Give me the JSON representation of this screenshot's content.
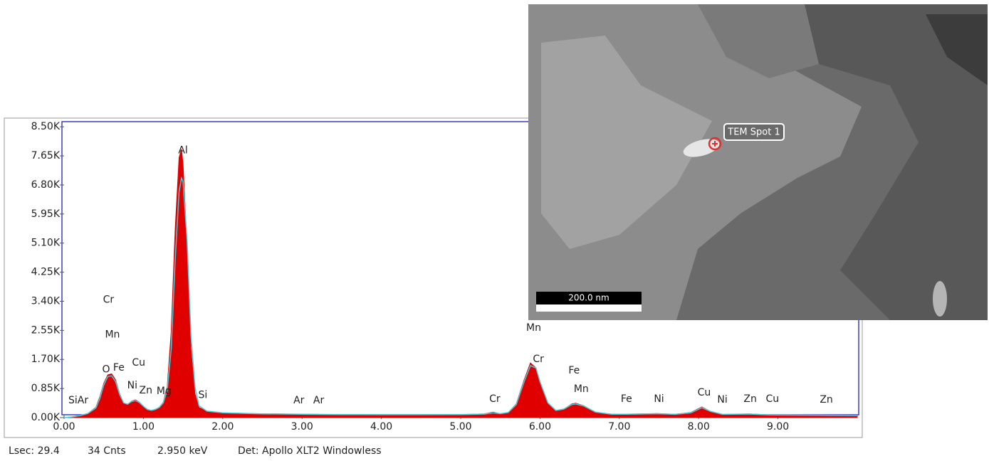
{
  "chart_data": {
    "type": "area",
    "x": [
      0,
      0.1,
      0.2,
      0.3,
      0.4,
      0.45,
      0.5,
      0.55,
      0.6,
      0.65,
      0.7,
      0.75,
      0.8,
      0.85,
      0.9,
      0.95,
      1.0,
      1.05,
      1.1,
      1.15,
      1.2,
      1.25,
      1.3,
      1.35,
      1.4,
      1.45,
      1.48,
      1.5,
      1.55,
      1.6,
      1.65,
      1.7,
      1.8,
      2.0,
      2.5,
      3.0,
      3.5,
      4.0,
      4.5,
      5.0,
      5.3,
      5.41,
      5.5,
      5.6,
      5.7,
      5.8,
      5.88,
      5.95,
      6.0,
      6.1,
      6.2,
      6.3,
      6.4,
      6.45,
      6.55,
      6.7,
      6.9,
      7.1,
      7.48,
      7.7,
      7.9,
      8.04,
      8.15,
      8.3,
      8.64,
      8.9,
      9.5,
      10.0
    ],
    "series": [
      {
        "color": "#e00000",
        "fill": true,
        "values": [
          0,
          20,
          60,
          120,
          300,
          600,
          1000,
          1250,
          1280,
          1100,
          700,
          420,
          380,
          480,
          520,
          450,
          330,
          230,
          200,
          230,
          300,
          450,
          900,
          2500,
          5500,
          7600,
          7850,
          7400,
          5000,
          2000,
          700,
          300,
          180,
          140,
          110,
          100,
          90,
          85,
          85,
          90,
          110,
          160,
          110,
          150,
          400,
          1100,
          1600,
          1450,
          1000,
          400,
          200,
          250,
          400,
          420,
          350,
          150,
          100,
          100,
          120,
          95,
          150,
          310,
          180,
          90,
          110,
          80,
          70,
          60
        ]
      },
      {
        "color": "#40d0e0",
        "fill": false,
        "values": [
          0,
          20,
          60,
          120,
          280,
          550,
          950,
          1200,
          1220,
          1050,
          680,
          430,
          390,
          470,
          500,
          440,
          330,
          240,
          210,
          240,
          300,
          430,
          800,
          2000,
          4600,
          6600,
          7000,
          6900,
          5200,
          2400,
          900,
          350,
          190,
          140,
          110,
          100,
          90,
          85,
          85,
          90,
          105,
          140,
          115,
          150,
          380,
          1050,
          1520,
          1450,
          1050,
          430,
          210,
          250,
          380,
          400,
          340,
          160,
          100,
          100,
          115,
          95,
          140,
          290,
          180,
          95,
          105,
          80,
          70,
          60
        ]
      }
    ],
    "xlim": [
      0,
      10.0
    ],
    "ylim": [
      0,
      8650
    ],
    "xticks": [
      {
        "value": 0,
        "label": "0.00"
      },
      {
        "value": 1,
        "label": "1.00"
      },
      {
        "value": 2,
        "label": "2.00"
      },
      {
        "value": 3,
        "label": "3.00"
      },
      {
        "value": 4,
        "label": "4.00"
      },
      {
        "value": 5,
        "label": "5.00"
      },
      {
        "value": 6,
        "label": "6.00"
      },
      {
        "value": 7,
        "label": "7.00"
      },
      {
        "value": 8,
        "label": "8.00"
      },
      {
        "value": 9,
        "label": "9.00"
      }
    ],
    "yticks": [
      {
        "value": 0,
        "label": "0.00K"
      },
      {
        "value": 850,
        "label": "0.85K"
      },
      {
        "value": 1700,
        "label": "1.70K"
      },
      {
        "value": 2550,
        "label": "2.55K"
      },
      {
        "value": 3400,
        "label": "3.40K"
      },
      {
        "value": 4250,
        "label": "4.25K"
      },
      {
        "value": 5100,
        "label": "5.10K"
      },
      {
        "value": 5950,
        "label": "5.95K"
      },
      {
        "value": 6800,
        "label": "6.80K"
      },
      {
        "value": 7650,
        "label": "7.65K"
      },
      {
        "value": 8500,
        "label": "8.50K"
      }
    ],
    "annotations": [
      {
        "text": "SiAr",
        "x": 0.18,
        "y": 500
      },
      {
        "text": "Cr",
        "x": 0.56,
        "y": 3440
      },
      {
        "text": "Mn",
        "x": 0.61,
        "y": 2420
      },
      {
        "text": "O",
        "x": 0.53,
        "y": 1400
      },
      {
        "text": "Fe",
        "x": 0.69,
        "y": 1460
      },
      {
        "text": "Cu",
        "x": 0.94,
        "y": 1600
      },
      {
        "text": "Ni",
        "x": 0.86,
        "y": 940
      },
      {
        "text": "Zn",
        "x": 1.03,
        "y": 790
      },
      {
        "text": "Mg",
        "x": 1.26,
        "y": 770
      },
      {
        "text": "Al",
        "x": 1.5,
        "y": 7810
      },
      {
        "text": "Si",
        "x": 1.75,
        "y": 650
      },
      {
        "text": "Ar",
        "x": 2.96,
        "y": 500
      },
      {
        "text": "Ar",
        "x": 3.21,
        "y": 500
      },
      {
        "text": "Cr",
        "x": 5.43,
        "y": 540
      },
      {
        "text": "Mn",
        "x": 5.92,
        "y": 2620
      },
      {
        "text": "Cr",
        "x": 5.98,
        "y": 1710
      },
      {
        "text": "Fe",
        "x": 6.43,
        "y": 1370
      },
      {
        "text": "Mn",
        "x": 6.52,
        "y": 830
      },
      {
        "text": "Fe",
        "x": 7.09,
        "y": 540
      },
      {
        "text": "Ni",
        "x": 7.5,
        "y": 540
      },
      {
        "text": "Cu",
        "x": 8.07,
        "y": 730
      },
      {
        "text": "Ni",
        "x": 8.3,
        "y": 520
      },
      {
        "text": "Zn",
        "x": 8.65,
        "y": 540
      },
      {
        "text": "Cu",
        "x": 8.93,
        "y": 540
      },
      {
        "text": "Zn",
        "x": 9.61,
        "y": 520
      }
    ]
  },
  "status": [
    "Lsec: 29.4",
    "34 Cnts",
    "2.950 keV",
    "Det: Apollo XLT2 Windowless"
  ],
  "image": {
    "spot_label": "TEM Spot 1",
    "scale_bar": "200.0 nm"
  }
}
